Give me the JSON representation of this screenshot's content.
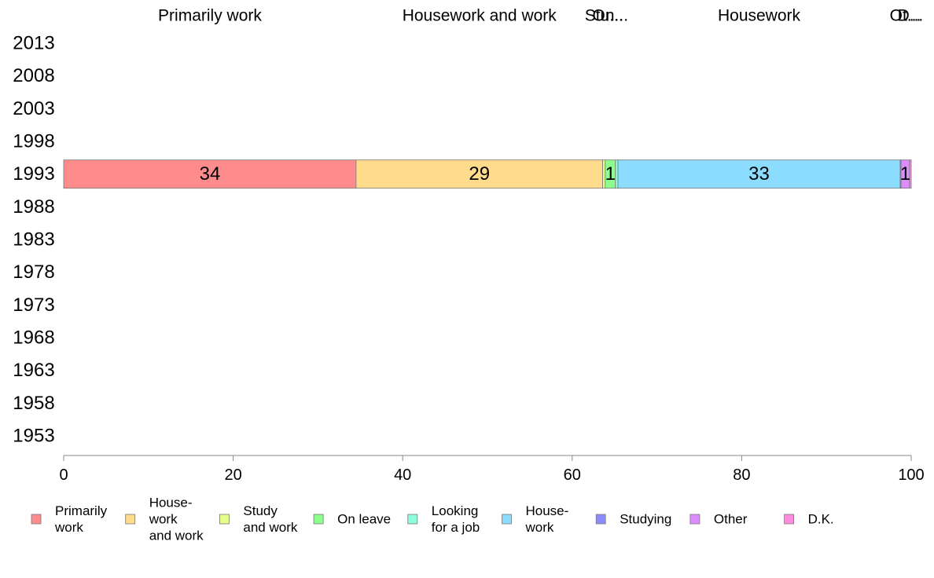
{
  "chart_data": {
    "type": "bar",
    "orientation": "horizontal",
    "stacked": true,
    "categories": [
      "2013",
      "2008",
      "2003",
      "1998",
      "1993",
      "1988",
      "1983",
      "1978",
      "1973",
      "1968",
      "1963",
      "1958",
      "1953"
    ],
    "top_labels": [
      "Primarily work",
      "Housework and work",
      "Stu...",
      "On...",
      "Housework",
      "Ot...",
      "D..."
    ],
    "series": [
      {
        "name": "Primarily work",
        "legend_lines": [
          "Primarily",
          "work"
        ],
        "color": "#ff8c8c",
        "values": [
          null,
          null,
          null,
          null,
          34.5,
          null,
          null,
          null,
          null,
          null,
          null,
          null,
          null
        ],
        "labels": [
          "",
          "",
          "",
          "",
          "34",
          "",
          "",
          "",
          "",
          "",
          "",
          "",
          ""
        ]
      },
      {
        "name": "House- work and work",
        "legend_lines": [
          "House-",
          "work",
          "and work"
        ],
        "color": "#ffdc8c",
        "values": [
          null,
          null,
          null,
          null,
          29.1,
          null,
          null,
          null,
          null,
          null,
          null,
          null,
          null
        ],
        "labels": [
          "",
          "",
          "",
          "",
          "29",
          "",
          "",
          "",
          "",
          "",
          "",
          "",
          ""
        ]
      },
      {
        "name": "Study and work",
        "legend_lines": [
          "Study",
          "and work"
        ],
        "color": "#e3ff8c",
        "values": [
          null,
          null,
          null,
          null,
          0.3,
          null,
          null,
          null,
          null,
          null,
          null,
          null,
          null
        ],
        "labels": [
          "",
          "",
          "",
          "",
          "",
          "",
          "",
          "",
          "",
          "",
          "",
          "",
          ""
        ]
      },
      {
        "name": "On leave",
        "legend_lines": [
          "On leave"
        ],
        "color": "#8cff8c",
        "values": [
          null,
          null,
          null,
          null,
          1.2,
          null,
          null,
          null,
          null,
          null,
          null,
          null,
          null
        ],
        "labels": [
          "",
          "",
          "",
          "",
          "1",
          "",
          "",
          "",
          "",
          "",
          "",
          "",
          ""
        ]
      },
      {
        "name": "Looking for a job",
        "legend_lines": [
          "Looking",
          "for a job"
        ],
        "color": "#8cffdc",
        "values": [
          null,
          null,
          null,
          null,
          0.3,
          null,
          null,
          null,
          null,
          null,
          null,
          null,
          null
        ],
        "labels": [
          "",
          "",
          "",
          "",
          "",
          "",
          "",
          "",
          "",
          "",
          "",
          "",
          ""
        ]
      },
      {
        "name": "House- work",
        "legend_lines": [
          "House-",
          "work"
        ],
        "color": "#8cdcff",
        "values": [
          null,
          null,
          null,
          null,
          33.3,
          null,
          null,
          null,
          null,
          null,
          null,
          null,
          null
        ],
        "labels": [
          "",
          "",
          "",
          "",
          "33",
          "",
          "",
          "",
          "",
          "",
          "",
          "",
          ""
        ]
      },
      {
        "name": "Studying",
        "legend_lines": [
          "Studying"
        ],
        "color": "#8c8cff",
        "values": [
          null,
          null,
          null,
          null,
          0.1,
          null,
          null,
          null,
          null,
          null,
          null,
          null,
          null
        ],
        "labels": [
          "",
          "",
          "",
          "",
          "",
          "",
          "",
          "",
          "",
          "",
          "",
          "",
          ""
        ]
      },
      {
        "name": "Other",
        "legend_lines": [
          "Other"
        ],
        "color": "#dc8cff",
        "values": [
          null,
          null,
          null,
          null,
          1.0,
          null,
          null,
          null,
          null,
          null,
          null,
          null,
          null
        ],
        "labels": [
          "",
          "",
          "",
          "",
          "1",
          "",
          "",
          "",
          "",
          "",
          "",
          "",
          ""
        ]
      },
      {
        "name": "D.K.",
        "legend_lines": [
          "D.K."
        ],
        "color": "#ff8cdc",
        "values": [
          null,
          null,
          null,
          null,
          0.2,
          null,
          null,
          null,
          null,
          null,
          null,
          null,
          null
        ],
        "labels": [
          "",
          "",
          "",
          "",
          "",
          "",
          "",
          "",
          "",
          "",
          "",
          "",
          ""
        ]
      }
    ],
    "xlim": [
      0,
      100
    ],
    "x_ticks": [
      0,
      20,
      40,
      60,
      80,
      100
    ],
    "x_tick_labels": [
      "0",
      "20",
      "40",
      "60",
      "80",
      "100"
    ],
    "title": "",
    "xlabel": "",
    "ylabel": "",
    "grid": false,
    "legend_position": "bottom"
  }
}
